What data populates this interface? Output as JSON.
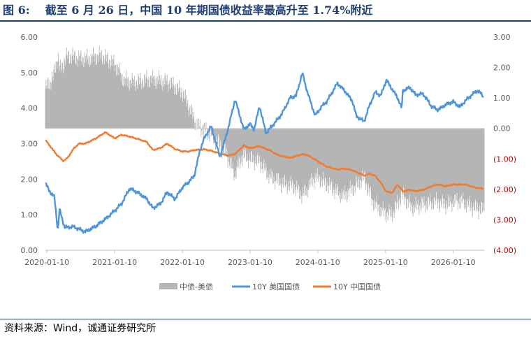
{
  "header": {
    "figure_number": "图 6:",
    "title": "截至 6 月 26 日，中国 10 年期国债收益率最高升至 1.74%附近"
  },
  "footer": {
    "source": "资料来源：Wind，诚通证券研究所"
  },
  "colors": {
    "us_line": "#4e95d9",
    "cn_line": "#ed7d31",
    "spread_bars": "#b5b5b5",
    "title": "#1f3f75",
    "negative_tick": "#c00000"
  },
  "chart_data": {
    "type": "line",
    "left_axis": {
      "range": [
        0,
        6
      ],
      "ticks": [
        "0.00",
        "1.00",
        "2.00",
        "3.00",
        "4.00",
        "5.00",
        "6.00"
      ]
    },
    "right_axis": {
      "range": [
        -4,
        3
      ],
      "ticks": [
        "(4.00)",
        "(3.00)",
        "(2.00)",
        "(1.00)",
        "0.00",
        "1.00",
        "2.00",
        "3.00"
      ]
    },
    "x_axis": {
      "range": [
        "2020-01-02",
        "2026-06-26"
      ],
      "ticks": [
        "2020-01-10",
        "2021-01-10",
        "2022-01-10",
        "2023-01-10",
        "2024-01-10",
        "2025-01-10",
        "2026-01-10"
      ]
    },
    "grid": false,
    "legend_position": "bottom",
    "series": [
      {
        "name": "中债-美债",
        "type": "bar",
        "axis": "right",
        "x": [
          "2020-01-02",
          "2020-02-15",
          "2020-03-09",
          "2020-03-20",
          "2020-05-01",
          "2020-07-01",
          "2020-09-01",
          "2020-11-01",
          "2021-01-10",
          "2021-03-01",
          "2021-04-15",
          "2021-07-01",
          "2021-09-01",
          "2021-11-01",
          "2022-01-10",
          "2022-03-01",
          "2022-04-01",
          "2022-06-15",
          "2022-09-01",
          "2022-10-20",
          "2022-12-01",
          "2023-01-10",
          "2023-03-01",
          "2023-05-01",
          "2023-07-01",
          "2023-09-01",
          "2023-10-20",
          "2023-12-28",
          "2024-02-01",
          "2024-04-25",
          "2024-06-01",
          "2024-08-01",
          "2024-09-15",
          "2024-11-01",
          "2025-01-10",
          "2025-02-15",
          "2025-04-08",
          "2025-06-01",
          "2025-08-01",
          "2025-10-01",
          "2025-12-01",
          "2026-01-10",
          "2026-03-01",
          "2026-05-01",
          "2026-06-26"
        ],
        "values": [
          1.3,
          1.7,
          2.4,
          1.9,
          2.4,
          2.3,
          2.3,
          2.4,
          2.1,
          1.6,
          1.5,
          1.6,
          1.6,
          1.5,
          1.2,
          0.5,
          0.1,
          -0.2,
          -0.8,
          -1.5,
          -0.9,
          -1.0,
          -1.1,
          -1.6,
          -1.8,
          -1.9,
          -2.2,
          -1.6,
          -1.7,
          -2.1,
          -2.2,
          -1.9,
          -1.6,
          -2.4,
          -2.8,
          -2.8,
          -2.2,
          -2.6,
          -2.5,
          -2.4,
          -2.5,
          -2.4,
          -2.4,
          -2.6,
          -2.7
        ]
      },
      {
        "name": "10Y 美国国债",
        "type": "line",
        "axis": "left",
        "x": [
          "2020-01-02",
          "2020-02-01",
          "2020-02-20",
          "2020-03-09",
          "2020-03-18",
          "2020-04-15",
          "2020-06-01",
          "2020-08-04",
          "2020-10-01",
          "2020-12-01",
          "2021-01-10",
          "2021-02-15",
          "2021-03-31",
          "2021-05-15",
          "2021-07-01",
          "2021-08-04",
          "2021-09-15",
          "2021-10-20",
          "2021-12-01",
          "2022-01-10",
          "2022-02-15",
          "2022-03-15",
          "2022-04-15",
          "2022-05-06",
          "2022-06-14",
          "2022-08-01",
          "2022-09-15",
          "2022-10-21",
          "2022-12-07",
          "2023-01-10",
          "2023-02-01",
          "2023-03-02",
          "2023-04-06",
          "2023-05-01",
          "2023-06-01",
          "2023-07-01",
          "2023-08-15",
          "2023-09-15",
          "2023-10-19",
          "2023-11-15",
          "2023-12-27",
          "2024-02-01",
          "2024-03-01",
          "2024-04-25",
          "2024-06-01",
          "2024-07-15",
          "2024-08-05",
          "2024-09-16",
          "2024-10-15",
          "2024-11-15",
          "2024-12-15",
          "2025-01-14",
          "2025-02-15",
          "2025-03-15",
          "2025-04-08",
          "2025-04-12",
          "2025-05-22",
          "2025-06-20",
          "2025-08-01",
          "2025-09-15",
          "2025-10-20",
          "2025-12-01",
          "2026-01-10",
          "2026-02-15",
          "2026-03-15",
          "2026-04-15",
          "2026-05-20",
          "2026-06-10",
          "2026-06-26"
        ],
        "values": [
          1.88,
          1.6,
          1.5,
          0.54,
          1.15,
          0.64,
          0.66,
          0.52,
          0.68,
          0.92,
          1.12,
          1.3,
          1.74,
          1.62,
          1.45,
          1.18,
          1.32,
          1.64,
          1.44,
          1.77,
          1.93,
          2.1,
          2.82,
          3.13,
          3.49,
          2.61,
          3.45,
          4.25,
          3.4,
          3.55,
          3.4,
          4.06,
          3.29,
          3.45,
          3.64,
          3.84,
          4.3,
          4.34,
          4.99,
          4.45,
          3.79,
          4.05,
          4.2,
          4.7,
          4.5,
          4.2,
          3.78,
          3.62,
          4.07,
          4.45,
          4.35,
          4.79,
          4.53,
          4.3,
          3.99,
          4.49,
          4.58,
          4.38,
          4.4,
          4.05,
          3.95,
          4.1,
          4.18,
          4.03,
          4.2,
          4.35,
          4.5,
          4.4,
          4.3
        ]
      },
      {
        "name": "10Y 中国国债",
        "type": "line",
        "axis": "left",
        "x": [
          "2020-01-02",
          "2020-02-01",
          "2020-03-01",
          "2020-04-08",
          "2020-05-01",
          "2020-06-01",
          "2020-07-01",
          "2020-08-04",
          "2020-10-01",
          "2020-11-20",
          "2021-01-10",
          "2021-02-15",
          "2021-03-31",
          "2021-05-15",
          "2021-07-01",
          "2021-08-04",
          "2021-09-15",
          "2021-10-20",
          "2021-12-01",
          "2022-01-10",
          "2022-02-15",
          "2022-03-15",
          "2022-04-15",
          "2022-05-06",
          "2022-06-14",
          "2022-08-01",
          "2022-09-15",
          "2022-10-21",
          "2022-12-07",
          "2023-01-10",
          "2023-02-01",
          "2023-03-02",
          "2023-04-06",
          "2023-05-01",
          "2023-06-01",
          "2023-07-01",
          "2023-08-15",
          "2023-09-15",
          "2023-10-19",
          "2023-11-15",
          "2023-12-27",
          "2024-02-01",
          "2024-03-01",
          "2024-04-25",
          "2024-06-01",
          "2024-07-15",
          "2024-08-05",
          "2024-09-16",
          "2024-10-15",
          "2024-11-15",
          "2024-12-15",
          "2025-01-14",
          "2025-02-15",
          "2025-03-15",
          "2025-04-08",
          "2025-04-12",
          "2025-05-22",
          "2025-06-20",
          "2025-08-01",
          "2025-09-15",
          "2025-10-20",
          "2025-12-01",
          "2026-01-10",
          "2026-02-15",
          "2026-03-15",
          "2026-04-15",
          "2026-05-20",
          "2026-06-10",
          "2026-06-26"
        ],
        "values": [
          3.1,
          2.9,
          2.7,
          2.51,
          2.6,
          2.85,
          3.0,
          3.0,
          3.15,
          3.32,
          3.15,
          3.25,
          3.2,
          3.13,
          3.05,
          2.82,
          2.88,
          3.0,
          2.85,
          2.78,
          2.78,
          2.82,
          2.83,
          2.84,
          2.8,
          2.72,
          2.66,
          2.71,
          2.95,
          2.87,
          2.9,
          2.93,
          2.85,
          2.8,
          2.7,
          2.65,
          2.6,
          2.65,
          2.7,
          2.68,
          2.55,
          2.43,
          2.35,
          2.27,
          2.3,
          2.25,
          2.2,
          2.1,
          2.15,
          2.1,
          1.9,
          1.65,
          1.62,
          1.85,
          1.7,
          1.65,
          1.7,
          1.66,
          1.7,
          1.8,
          1.85,
          1.8,
          1.85,
          1.85,
          1.85,
          1.8,
          1.75,
          1.74,
          1.73
        ]
      }
    ]
  }
}
